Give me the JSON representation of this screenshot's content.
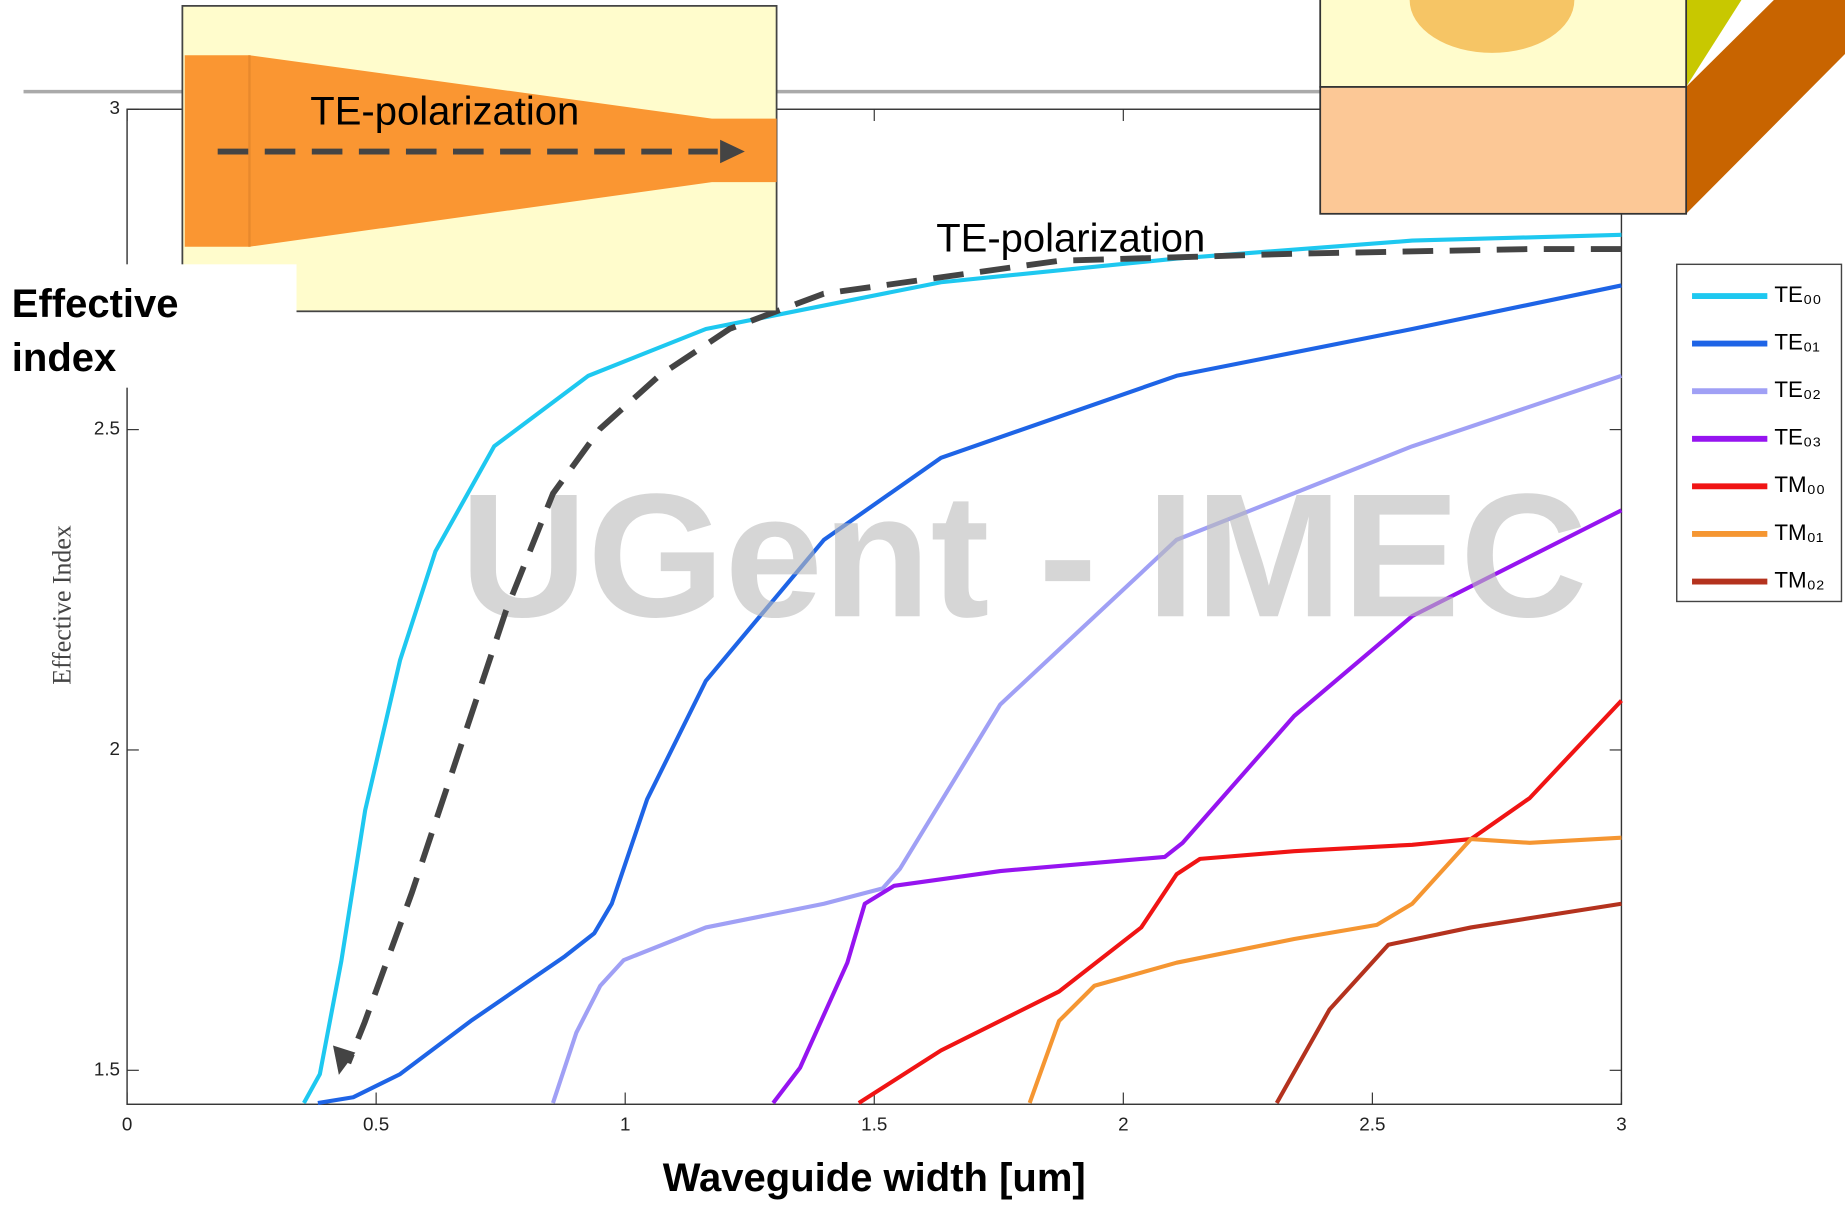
{
  "chart_data": {
    "type": "line",
    "xlabel": "Waveguide width [um]",
    "ylabel": "Effective Index",
    "annotations": [
      "TE-polarization",
      "TE-polarization",
      "Effective index",
      "UGent - IMEC"
    ],
    "xlim": [
      0,
      3
    ],
    "ylim": [
      1.447,
      3
    ],
    "xticks": [
      0,
      0.5,
      1,
      1.5,
      2,
      2.5,
      3
    ],
    "yticks": [
      1.5,
      2,
      2.5,
      3
    ],
    "series": [
      {
        "name": "TE₀₀",
        "color": "#1ec8f0",
        "x": [
          0.355,
          0.387,
          0.43,
          0.478,
          0.548,
          0.619,
          0.737,
          0.926,
          1.162,
          1.634,
          2.107,
          2.58,
          3
        ],
        "values": [
          1.449,
          1.494,
          1.67,
          1.906,
          2.14,
          2.31,
          2.474,
          2.584,
          2.657,
          2.73,
          2.767,
          2.795,
          2.804
        ]
      },
      {
        "name": "TE₀₁",
        "color": "#1e64e6",
        "x": [
          0.383,
          0.454,
          0.548,
          0.69,
          0.879,
          0.938,
          0.973,
          1.044,
          1.162,
          1.399,
          1.634,
          2.107,
          2.58,
          3
        ],
        "values": [
          1.449,
          1.458,
          1.494,
          1.577,
          1.678,
          1.714,
          1.76,
          1.923,
          2.108,
          2.328,
          2.456,
          2.584,
          2.657,
          2.725
        ]
      },
      {
        "name": "TE₀₂",
        "color": "#a0a0f5",
        "x": [
          0.855,
          0.902,
          0.95,
          0.997,
          1.162,
          1.399,
          1.517,
          1.552,
          1.753,
          2.107,
          2.58,
          3
        ],
        "values": [
          1.449,
          1.559,
          1.632,
          1.672,
          1.723,
          1.76,
          1.784,
          1.815,
          2.071,
          2.328,
          2.474,
          2.584
        ]
      },
      {
        "name": "TE₀₃",
        "color": "#9614f0",
        "x": [
          1.297,
          1.351,
          1.446,
          1.481,
          1.54,
          1.753,
          2.083,
          2.119,
          2.343,
          2.58,
          3
        ],
        "values": [
          1.449,
          1.504,
          1.668,
          1.76,
          1.788,
          1.811,
          1.833,
          1.855,
          2.053,
          2.209,
          2.374
        ]
      },
      {
        "name": "TM₀₀",
        "color": "#f01414",
        "x": [
          1.469,
          1.634,
          1.871,
          2.036,
          2.107,
          2.154,
          2.343,
          2.58,
          2.698,
          2.816,
          3
        ],
        "values": [
          1.449,
          1.531,
          1.623,
          1.723,
          1.806,
          1.83,
          1.842,
          1.852,
          1.861,
          1.925,
          2.077
        ]
      },
      {
        "name": "TM₀₁",
        "color": "#f59632",
        "x": [
          1.812,
          1.871,
          1.942,
          2.107,
          2.343,
          2.509,
          2.58,
          2.698,
          2.816,
          3
        ],
        "values": [
          1.449,
          1.577,
          1.632,
          1.668,
          1.705,
          1.727,
          1.76,
          1.861,
          1.855,
          1.863
        ]
      },
      {
        "name": "TM₀₂",
        "color": "#b4321e",
        "x": [
          2.308,
          2.414,
          2.532,
          2.698,
          3
        ],
        "values": [
          1.449,
          1.595,
          1.696,
          1.723,
          1.76
        ]
      }
    ]
  }
}
